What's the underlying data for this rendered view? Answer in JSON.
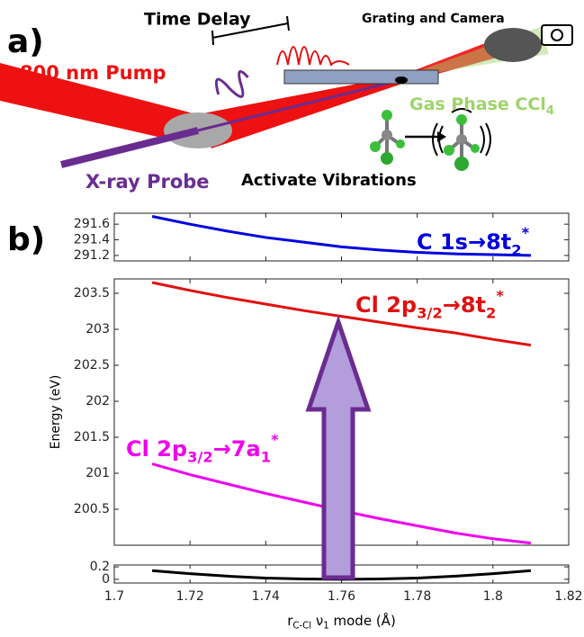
{
  "panel_a": {
    "label": "a)",
    "time_delay": "Time Delay",
    "camera": "Grating and Camera",
    "pump": "800 nm Pump",
    "gas": {
      "text": "Gas Phase CCl",
      "sub": "4"
    },
    "probe": "X-ray Probe",
    "vibrations": "Activate Vibrations"
  },
  "panel_b_label": "b)",
  "chart_data": [
    {
      "type": "line",
      "x": [
        1.71,
        1.72,
        1.73,
        1.74,
        1.75,
        1.76,
        1.77,
        1.78,
        1.79,
        1.8,
        1.81
      ],
      "xlim": [
        1.7,
        1.82
      ],
      "ylim": [
        291.13,
        291.74
      ],
      "yticks": [
        291.2,
        291.4,
        291.6
      ],
      "series": [
        {
          "color": "#0000e0",
          "values": [
            291.7,
            291.6,
            291.51,
            291.43,
            291.37,
            291.31,
            291.27,
            291.24,
            291.22,
            291.21,
            291.2
          ],
          "annotation": {
            "text": "C 1s",
            "arrow": "→",
            "orbital": "8t",
            "sub": "2",
            "sup": "*"
          }
        }
      ]
    },
    {
      "type": "line",
      "x": [
        1.71,
        1.72,
        1.73,
        1.74,
        1.75,
        1.76,
        1.77,
        1.78,
        1.79,
        1.8,
        1.81
      ],
      "xlim": [
        1.7,
        1.82
      ],
      "ylim": [
        200,
        203.7
      ],
      "yticks": [
        200.5,
        201,
        201.5,
        202,
        202.5,
        203,
        203.5
      ],
      "ylabel": "Energy (eV)",
      "series": [
        {
          "color": "#e01010",
          "values": [
            203.65,
            203.54,
            203.44,
            203.35,
            203.26,
            203.18,
            203.1,
            203.02,
            202.95,
            202.86,
            202.78
          ],
          "annotation": {
            "text": "Cl 2p",
            "sub": "3/2",
            "arrow": "→",
            "orbital": "8t",
            "sub2": "2",
            "sup": "*"
          }
        },
        {
          "color": "#ee00ee",
          "values": [
            201.13,
            200.98,
            200.85,
            200.72,
            200.6,
            200.48,
            200.37,
            200.27,
            200.17,
            200.09,
            200.03
          ],
          "annotation": {
            "text": "Cl 2p",
            "sub": "3/2",
            "arrow": "→",
            "orbital": "7a",
            "sub2": "1",
            "sup": "*"
          }
        }
      ]
    },
    {
      "type": "line",
      "x": [
        1.71,
        1.72,
        1.73,
        1.74,
        1.75,
        1.76,
        1.77,
        1.78,
        1.79,
        1.8,
        1.81
      ],
      "xlim": [
        1.7,
        1.82
      ],
      "xticks": [
        1.7,
        1.72,
        1.74,
        1.76,
        1.78,
        1.8,
        1.82
      ],
      "ylim": [
        -0.06,
        0.23
      ],
      "yticks": [
        0,
        0.2
      ],
      "xlabel": {
        "text": "r",
        "sub": "C-Cl",
        "nu": " ν",
        "sub2": "1",
        "rest": " mode (Å)"
      },
      "series": [
        {
          "color": "#000000",
          "values": [
            0.14,
            0.09,
            0.05,
            0.02,
            0.005,
            0,
            0.005,
            0.02,
            0.05,
            0.09,
            0.14
          ]
        }
      ]
    }
  ]
}
